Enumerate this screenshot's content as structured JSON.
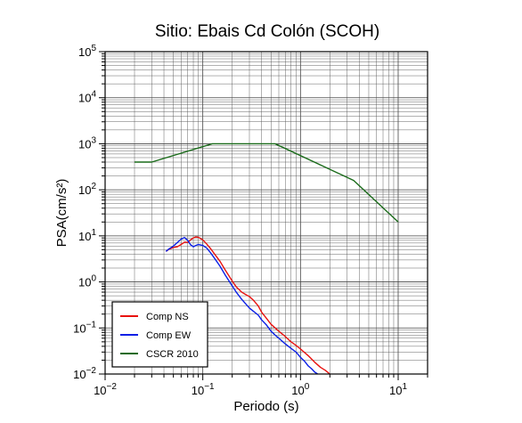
{
  "chart_data": {
    "type": "line",
    "title": "Sitio: Ebais Cd Colón (SCOH)",
    "xlabel": "Periodo (s)",
    "ylabel": "PSA(cm/s²)",
    "x_scale": "log",
    "y_scale": "log",
    "xlim": [
      0.01,
      20
    ],
    "ylim": [
      0.01,
      100000
    ],
    "grid": true,
    "legend_position": "bottom-left",
    "x_ticks": [
      {
        "base": "10",
        "exp": "−2",
        "value": 0.01
      },
      {
        "base": "10",
        "exp": "−1",
        "value": 0.1
      },
      {
        "base": "10",
        "exp": "0",
        "value": 1
      },
      {
        "base": "10",
        "exp": "1",
        "value": 10
      }
    ],
    "y_ticks": [
      {
        "base": "10",
        "exp": "−2",
        "value": 0.01
      },
      {
        "base": "10",
        "exp": "−1",
        "value": 0.1
      },
      {
        "base": "10",
        "exp": "0",
        "value": 1
      },
      {
        "base": "10",
        "exp": "1",
        "value": 10
      },
      {
        "base": "10",
        "exp": "2",
        "value": 100
      },
      {
        "base": "10",
        "exp": "3",
        "value": 1000
      },
      {
        "base": "10",
        "exp": "4",
        "value": 10000
      },
      {
        "base": "10",
        "exp": "5",
        "value": 100000
      }
    ],
    "series": [
      {
        "name": "Comp NS",
        "color": "#e8120f",
        "points": [
          [
            0.042,
            4.6
          ],
          [
            0.045,
            5.1
          ],
          [
            0.05,
            5.6
          ],
          [
            0.055,
            5.8
          ],
          [
            0.06,
            6.5
          ],
          [
            0.065,
            7.3
          ],
          [
            0.07,
            7.2
          ],
          [
            0.075,
            8.2
          ],
          [
            0.08,
            9.0
          ],
          [
            0.085,
            9.5
          ],
          [
            0.09,
            9.3
          ],
          [
            0.1,
            8.2
          ],
          [
            0.11,
            6.6
          ],
          [
            0.12,
            5.3
          ],
          [
            0.13,
            4.2
          ],
          [
            0.15,
            2.8
          ],
          [
            0.17,
            1.8
          ],
          [
            0.2,
            1.05
          ],
          [
            0.22,
            0.78
          ],
          [
            0.25,
            0.6
          ],
          [
            0.28,
            0.52
          ],
          [
            0.3,
            0.48
          ],
          [
            0.33,
            0.4
          ],
          [
            0.37,
            0.3
          ],
          [
            0.4,
            0.22
          ],
          [
            0.45,
            0.16
          ],
          [
            0.5,
            0.12
          ],
          [
            0.6,
            0.085
          ],
          [
            0.7,
            0.065
          ],
          [
            0.8,
            0.05
          ],
          [
            0.9,
            0.042
          ],
          [
            1.0,
            0.035
          ],
          [
            1.2,
            0.025
          ],
          [
            1.4,
            0.018
          ],
          [
            1.6,
            0.014
          ],
          [
            1.8,
            0.012
          ],
          [
            2.0,
            0.01
          ]
        ]
      },
      {
        "name": "Comp EW",
        "color": "#0a1fe6",
        "points": [
          [
            0.042,
            4.6
          ],
          [
            0.045,
            5.2
          ],
          [
            0.05,
            6.0
          ],
          [
            0.055,
            7.2
          ],
          [
            0.06,
            8.5
          ],
          [
            0.065,
            9.2
          ],
          [
            0.07,
            8.0
          ],
          [
            0.075,
            6.4
          ],
          [
            0.08,
            5.8
          ],
          [
            0.085,
            6.2
          ],
          [
            0.09,
            6.5
          ],
          [
            0.1,
            6.2
          ],
          [
            0.11,
            5.4
          ],
          [
            0.12,
            4.3
          ],
          [
            0.13,
            3.4
          ],
          [
            0.15,
            2.2
          ],
          [
            0.17,
            1.4
          ],
          [
            0.2,
            0.82
          ],
          [
            0.22,
            0.6
          ],
          [
            0.25,
            0.42
          ],
          [
            0.28,
            0.32
          ],
          [
            0.3,
            0.27
          ],
          [
            0.33,
            0.23
          ],
          [
            0.37,
            0.19
          ],
          [
            0.4,
            0.15
          ],
          [
            0.45,
            0.115
          ],
          [
            0.5,
            0.085
          ],
          [
            0.55,
            0.07
          ],
          [
            0.6,
            0.06
          ],
          [
            0.7,
            0.045
          ],
          [
            0.8,
            0.036
          ],
          [
            0.9,
            0.03
          ],
          [
            1.0,
            0.023
          ],
          [
            1.1,
            0.019
          ],
          [
            1.2,
            0.015
          ],
          [
            1.3,
            0.013
          ],
          [
            1.4,
            0.011
          ],
          [
            1.5,
            0.01
          ]
        ]
      },
      {
        "name": "CSCR 2010",
        "color": "#1a6b1a",
        "points": [
          [
            0.02,
            400
          ],
          [
            0.03,
            400
          ],
          [
            0.125,
            1000
          ],
          [
            0.55,
            1000
          ],
          [
            3.5,
            160
          ],
          [
            10,
            20
          ]
        ]
      }
    ]
  }
}
